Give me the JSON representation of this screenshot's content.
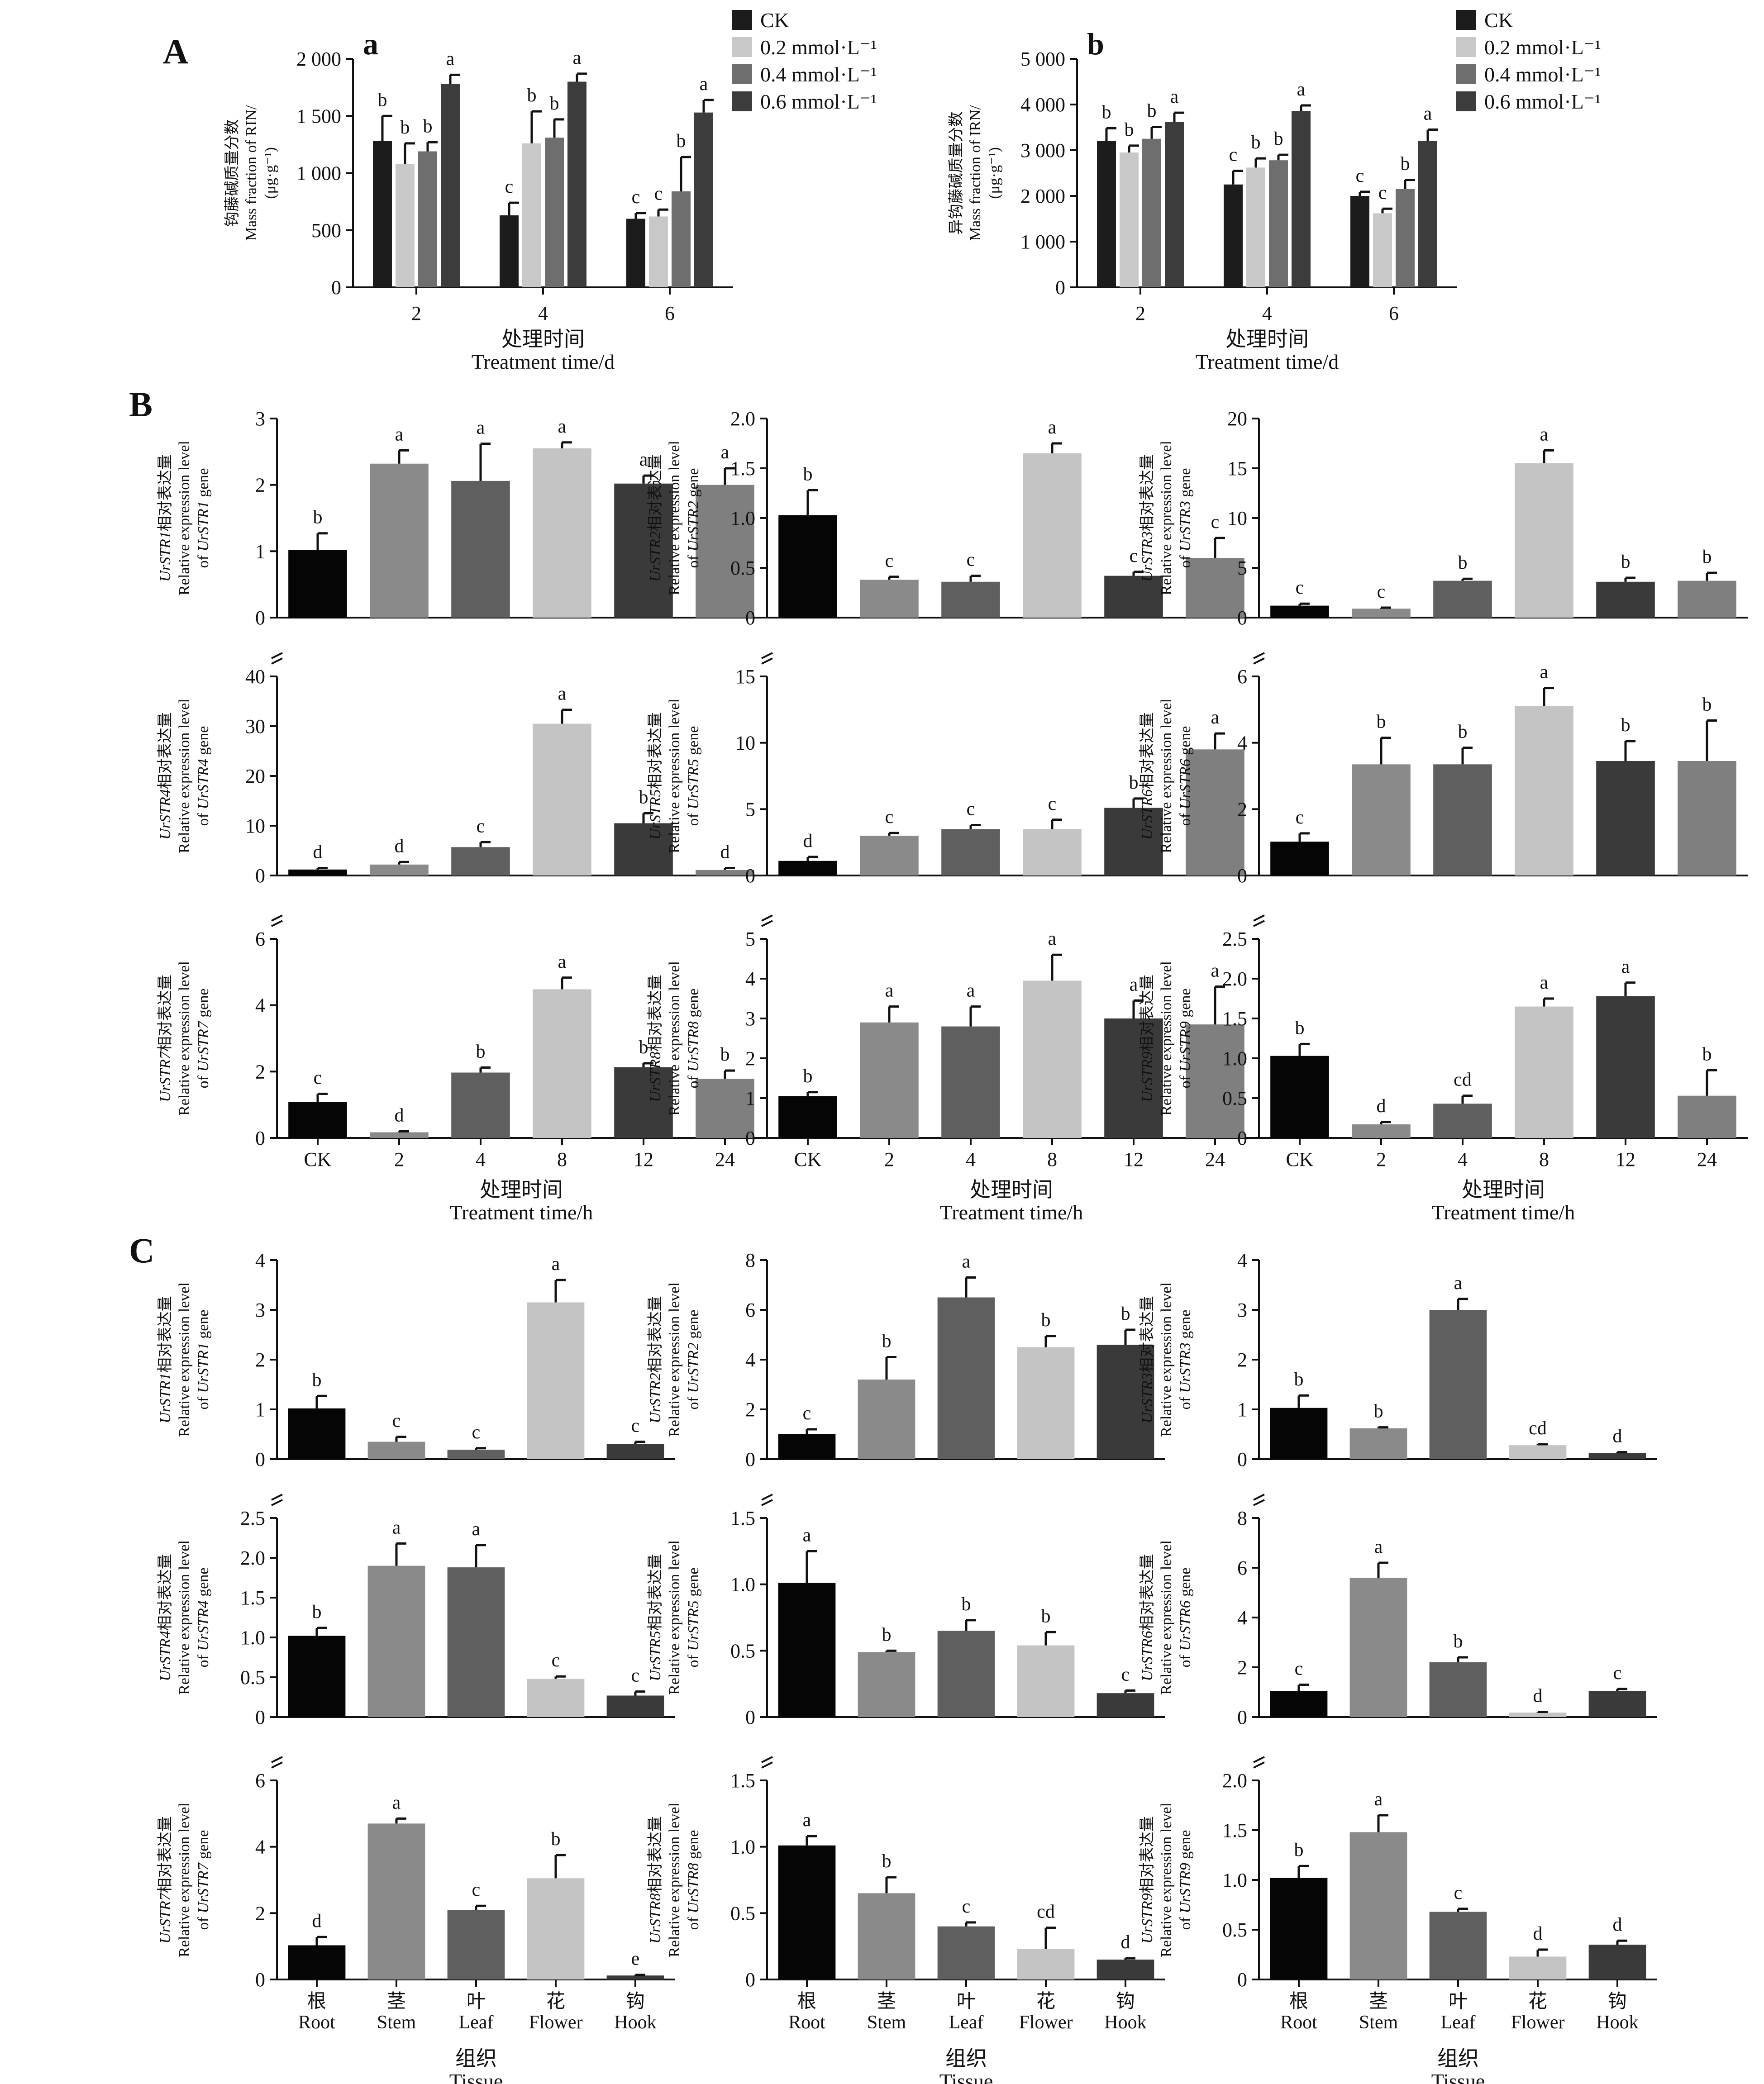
{
  "panels": {
    "A": "A",
    "B": "B",
    "C": "C"
  },
  "legend": [
    {
      "label": "CK",
      "color": "#1c1c1c"
    },
    {
      "label": "0.2 mmol·L⁻¹",
      "color": "#c8c8c8"
    },
    {
      "label": "0.4 mmol·L⁻¹",
      "color": "#6e6e6e"
    },
    {
      "label": "0.6 mmol·L⁻¹",
      "color": "#3c3c3c"
    }
  ],
  "chart_data": [
    {
      "id": "Aa",
      "type": "bar",
      "sublabel": "a",
      "categories": [
        "2",
        "4",
        "6"
      ],
      "series": [
        {
          "name": "CK",
          "values": [
            1280,
            630,
            600
          ],
          "err": [
            220,
            110,
            50
          ],
          "sig": [
            "b",
            "c",
            "c"
          ]
        },
        {
          "name": "0.2 mmol·L⁻¹",
          "values": [
            1080,
            1260,
            620
          ],
          "err": [
            180,
            280,
            60
          ],
          "sig": [
            "b",
            "b",
            "c"
          ]
        },
        {
          "name": "0.4 mmol·L⁻¹",
          "values": [
            1190,
            1310,
            840
          ],
          "err": [
            80,
            160,
            300
          ],
          "sig": [
            "b",
            "b",
            "b"
          ]
        },
        {
          "name": "0.6 mmol·L⁻¹",
          "values": [
            1780,
            1800,
            1530
          ],
          "err": [
            80,
            70,
            110
          ],
          "sig": [
            "a",
            "a",
            "a"
          ]
        }
      ],
      "ylabel_cn": "钩藤碱质量分数",
      "ylabel_en": "Mass fraction of RIN/",
      "ylabel_unit": "(μg·g⁻¹)",
      "xlabel_cn": "处理时间",
      "xlabel_en": "Treatment time/d",
      "yticks": [
        "0",
        "500",
        "1 000",
        "1 500",
        "2 000"
      ],
      "ylim": [
        0,
        2000
      ]
    },
    {
      "id": "Ab",
      "type": "bar",
      "sublabel": "b",
      "categories": [
        "2",
        "4",
        "6"
      ],
      "series": [
        {
          "name": "CK",
          "values": [
            3200,
            2250,
            2000
          ],
          "err": [
            280,
            300,
            90
          ],
          "sig": [
            "b",
            "c",
            "c"
          ]
        },
        {
          "name": "0.2 mmol·L⁻¹",
          "values": [
            2950,
            2620,
            1620
          ],
          "err": [
            150,
            200,
            100
          ],
          "sig": [
            "b",
            "b",
            "c"
          ]
        },
        {
          "name": "0.4 mmol·L⁻¹",
          "values": [
            3250,
            2780,
            2150
          ],
          "err": [
            260,
            120,
            200
          ],
          "sig": [
            "b",
            "b",
            "b"
          ]
        },
        {
          "name": "0.6 mmol·L⁻¹",
          "values": [
            3620,
            3860,
            3200
          ],
          "err": [
            200,
            120,
            250
          ],
          "sig": [
            "a",
            "a",
            "a"
          ]
        }
      ],
      "ylabel_cn": "异钩藤碱质量分数",
      "ylabel_en": "Mass fraction of IRN/",
      "ylabel_unit": "(μg·g⁻¹)",
      "xlabel_cn": "处理时间",
      "xlabel_en": "Treatment time/d",
      "yticks": [
        "0",
        "1 000",
        "2 000",
        "3 000",
        "4 000",
        "5 000"
      ],
      "ylim": [
        0,
        5000
      ]
    },
    {
      "id": "B1",
      "type": "bar",
      "gene": "UrSTR1",
      "categories": [
        "CK",
        "2",
        "4",
        "8",
        "12",
        "24"
      ],
      "values": [
        1.02,
        2.32,
        2.06,
        2.55,
        2.02,
        2.0
      ],
      "err": [
        0.25,
        0.2,
        0.56,
        0.09,
        0.12,
        0.25
      ],
      "sig": [
        "b",
        "a",
        "a",
        "a",
        "a",
        "a"
      ],
      "yticks": [
        "0",
        "1",
        "2",
        "3"
      ],
      "ylim": [
        0,
        3
      ]
    },
    {
      "id": "B2",
      "type": "bar",
      "gene": "UrSTR2",
      "categories": [
        "CK",
        "2",
        "4",
        "8",
        "12",
        "24"
      ],
      "values": [
        1.03,
        0.38,
        0.36,
        1.65,
        0.42,
        0.6
      ],
      "err": [
        0.25,
        0.03,
        0.06,
        0.1,
        0.04,
        0.2
      ],
      "sig": [
        "b",
        "c",
        "c",
        "a",
        "c",
        "c"
      ],
      "yticks": [
        "0",
        "0.5",
        "1.0",
        "1.5",
        "2.0"
      ],
      "ylim": [
        0,
        2
      ]
    },
    {
      "id": "B3",
      "type": "bar",
      "gene": "UrSTR3",
      "categories": [
        "CK",
        "2",
        "4",
        "8",
        "12",
        "24"
      ],
      "values": [
        1.2,
        0.9,
        3.7,
        15.5,
        3.6,
        3.7
      ],
      "err": [
        0.2,
        0.1,
        0.2,
        1.3,
        0.4,
        0.8
      ],
      "sig": [
        "c",
        "c",
        "b",
        "a",
        "b",
        "b"
      ],
      "yticks": [
        "0",
        "5",
        "10",
        "15",
        "20"
      ],
      "ylim": [
        0,
        20
      ]
    },
    {
      "id": "B4",
      "type": "bar",
      "gene": "UrSTR4",
      "categories": [
        "CK",
        "2",
        "4",
        "8",
        "12",
        "24"
      ],
      "values": [
        1.2,
        2.2,
        5.7,
        30.5,
        10.5,
        1.1
      ],
      "err": [
        0.3,
        0.5,
        1.0,
        2.8,
        2.0,
        0.4
      ],
      "sig": [
        "d",
        "d",
        "c",
        "a",
        "b",
        "d"
      ],
      "yticks": [
        "0",
        "10",
        "20",
        "30",
        "40"
      ],
      "ylim": [
        0,
        40
      ]
    },
    {
      "id": "B5",
      "type": "bar",
      "gene": "UrSTR5",
      "categories": [
        "CK",
        "2",
        "4",
        "8",
        "12",
        "24"
      ],
      "values": [
        1.1,
        3.0,
        3.5,
        3.5,
        5.1,
        9.5
      ],
      "err": [
        0.3,
        0.2,
        0.3,
        0.7,
        0.7,
        1.2
      ],
      "sig": [
        "d",
        "c",
        "c",
        "c",
        "b",
        "a"
      ],
      "yticks": [
        "0",
        "5",
        "10",
        "15"
      ],
      "ylim": [
        0,
        15
      ]
    },
    {
      "id": "B6",
      "type": "bar",
      "gene": "UrSTR6",
      "categories": [
        "CK",
        "2",
        "4",
        "8",
        "12",
        "24"
      ],
      "values": [
        1.02,
        3.35,
        3.35,
        5.1,
        3.45,
        3.45
      ],
      "err": [
        0.25,
        0.8,
        0.5,
        0.55,
        0.6,
        1.22
      ],
      "sig": [
        "c",
        "b",
        "b",
        "a",
        "b",
        "b"
      ],
      "yticks": [
        "0",
        "2",
        "4",
        "6"
      ],
      "ylim": [
        0,
        6
      ]
    },
    {
      "id": "B7",
      "type": "bar",
      "gene": "UrSTR7",
      "categories": [
        "CK",
        "2",
        "4",
        "8",
        "12",
        "24"
      ],
      "values": [
        1.08,
        0.17,
        1.97,
        4.48,
        2.13,
        1.78
      ],
      "err": [
        0.25,
        0.03,
        0.15,
        0.35,
        0.12,
        0.25
      ],
      "sig": [
        "c",
        "d",
        "b",
        "a",
        "b",
        "b"
      ],
      "yticks": [
        "0",
        "2",
        "4",
        "6"
      ],
      "ylim": [
        0,
        6
      ]
    },
    {
      "id": "B8",
      "type": "bar",
      "gene": "UrSTR8",
      "categories": [
        "CK",
        "2",
        "4",
        "8",
        "12",
        "24"
      ],
      "values": [
        1.05,
        2.9,
        2.8,
        3.95,
        3.0,
        2.85
      ],
      "err": [
        0.1,
        0.4,
        0.5,
        0.65,
        0.45,
        0.95
      ],
      "sig": [
        "b",
        "a",
        "a",
        "a",
        "a",
        "a"
      ],
      "yticks": [
        "0",
        "1",
        "2",
        "3",
        "4",
        "5"
      ],
      "ylim": [
        0,
        5
      ]
    },
    {
      "id": "B9",
      "type": "bar",
      "gene": "UrSTR9",
      "categories": [
        "CK",
        "2",
        "4",
        "8",
        "12",
        "24"
      ],
      "values": [
        1.03,
        0.17,
        0.43,
        1.65,
        1.78,
        0.53
      ],
      "err": [
        0.15,
        0.03,
        0.1,
        0.1,
        0.17,
        0.32
      ],
      "sig": [
        "b",
        "d",
        "cd",
        "a",
        "a",
        "b"
      ],
      "yticks": [
        "0",
        "0.5",
        "1.0",
        "1.5",
        "2.0",
        "2.5"
      ],
      "ylim": [
        0,
        2.5
      ]
    },
    {
      "id": "C1",
      "type": "bar",
      "gene": "UrSTR1",
      "categories": [
        "Root",
        "Stem",
        "Leaf",
        "Flower",
        "Hook"
      ],
      "values": [
        1.02,
        0.35,
        0.19,
        3.15,
        0.3
      ],
      "err": [
        0.25,
        0.1,
        0.03,
        0.45,
        0.05
      ],
      "sig": [
        "b",
        "c",
        "c",
        "a",
        "c"
      ],
      "yticks": [
        "0",
        "1",
        "2",
        "3",
        "4"
      ],
      "ylim": [
        0,
        4
      ]
    },
    {
      "id": "C2",
      "type": "bar",
      "gene": "UrSTR2",
      "categories": [
        "Root",
        "Stem",
        "Leaf",
        "Flower",
        "Hook"
      ],
      "values": [
        1.0,
        3.2,
        6.5,
        4.5,
        4.6
      ],
      "err": [
        0.2,
        0.9,
        0.8,
        0.45,
        0.6
      ],
      "sig": [
        "c",
        "b",
        "a",
        "b",
        "b"
      ],
      "yticks": [
        "0",
        "2",
        "4",
        "6",
        "8"
      ],
      "ylim": [
        0,
        8
      ]
    },
    {
      "id": "C3",
      "type": "bar",
      "gene": "UrSTR3",
      "categories": [
        "Root",
        "Stem",
        "Leaf",
        "Flower",
        "Hook"
      ],
      "values": [
        1.03,
        0.62,
        3.0,
        0.28,
        0.12
      ],
      "err": [
        0.25,
        0.02,
        0.22,
        0.02,
        0.02
      ],
      "sig": [
        "b",
        "b",
        "a",
        "cd",
        "d"
      ],
      "yticks": [
        "0",
        "1",
        "2",
        "3",
        "4"
      ],
      "ylim": [
        0,
        4
      ]
    },
    {
      "id": "C4",
      "type": "bar",
      "gene": "UrSTR4",
      "categories": [
        "Root",
        "Stem",
        "Leaf",
        "Flower",
        "Hook"
      ],
      "values": [
        1.02,
        1.9,
        1.88,
        0.48,
        0.27
      ],
      "err": [
        0.1,
        0.28,
        0.28,
        0.03,
        0.05
      ],
      "sig": [
        "b",
        "a",
        "a",
        "c",
        "c"
      ],
      "yticks": [
        "0",
        "0.5",
        "1.0",
        "1.5",
        "2.0",
        "2.5"
      ],
      "ylim": [
        0,
        2.5
      ]
    },
    {
      "id": "C5",
      "type": "bar",
      "gene": "UrSTR5",
      "categories": [
        "Root",
        "Stem",
        "Leaf",
        "Flower",
        "Hook"
      ],
      "values": [
        1.01,
        0.49,
        0.65,
        0.54,
        0.18
      ],
      "err": [
        0.24,
        0.01,
        0.08,
        0.1,
        0.02
      ],
      "sig": [
        "a",
        "b",
        "b",
        "b",
        "c"
      ],
      "yticks": [
        "0",
        "0.5",
        "1.0",
        "1.5"
      ],
      "ylim": [
        0,
        1.5
      ]
    },
    {
      "id": "C6",
      "type": "bar",
      "gene": "UrSTR6",
      "categories": [
        "Root",
        "Stem",
        "Leaf",
        "Flower",
        "Hook"
      ],
      "values": [
        1.05,
        5.6,
        2.2,
        0.18,
        1.05
      ],
      "err": [
        0.25,
        0.6,
        0.2,
        0.03,
        0.08
      ],
      "sig": [
        "c",
        "a",
        "b",
        "d",
        "c"
      ],
      "yticks": [
        "0",
        "2",
        "4",
        "6",
        "8"
      ],
      "ylim": [
        0,
        8
      ]
    },
    {
      "id": "C7",
      "type": "bar",
      "gene": "UrSTR7",
      "categories": [
        "Root",
        "Stem",
        "Leaf",
        "Flower",
        "Hook"
      ],
      "values": [
        1.03,
        4.7,
        2.1,
        3.05,
        0.12
      ],
      "err": [
        0.25,
        0.15,
        0.12,
        0.7,
        0.02
      ],
      "sig": [
        "d",
        "a",
        "c",
        "b",
        "e"
      ],
      "yticks": [
        "0",
        "2",
        "4",
        "6"
      ],
      "ylim": [
        0,
        6
      ]
    },
    {
      "id": "C8",
      "type": "bar",
      "gene": "UrSTR8",
      "categories": [
        "Root",
        "Stem",
        "Leaf",
        "Flower",
        "Hook"
      ],
      "values": [
        1.01,
        0.65,
        0.4,
        0.23,
        0.15
      ],
      "err": [
        0.07,
        0.12,
        0.03,
        0.16,
        0.01
      ],
      "sig": [
        "a",
        "b",
        "c",
        "cd",
        "d"
      ],
      "yticks": [
        "0",
        "0.5",
        "1.0",
        "1.5"
      ],
      "ylim": [
        0,
        1.5
      ]
    },
    {
      "id": "C9",
      "type": "bar",
      "gene": "UrSTR9",
      "categories": [
        "Root",
        "Stem",
        "Leaf",
        "Flower",
        "Hook"
      ],
      "values": [
        1.02,
        1.48,
        0.68,
        0.23,
        0.35
      ],
      "err": [
        0.12,
        0.17,
        0.03,
        0.07,
        0.04
      ],
      "sig": [
        "b",
        "a",
        "c",
        "d",
        "d"
      ],
      "yticks": [
        "0",
        "0.5",
        "1.0",
        "1.5",
        "2.0"
      ],
      "ylim": [
        0,
        2
      ]
    }
  ],
  "time_axis": {
    "cn": "处理时间",
    "en": "Treatment time/h"
  },
  "tissue_axis": {
    "cn": "组织",
    "en": "Tissue"
  },
  "tissue_cn": [
    "根",
    "茎",
    "叶",
    "花",
    "钩"
  ],
  "gene_ylabel": {
    "cn_suffix": "相对表达量",
    "en_line1": "Relative expression level",
    "en_prefix": "of ",
    "en_suffix": " gene"
  },
  "bar_colors": {
    "B": [
      "#050505",
      "#8a8a8a",
      "#5f5f5f",
      "#c4c4c4",
      "#3a3a3a",
      "#7f7f7f"
    ],
    "C": [
      "#050505",
      "#8a8a8a",
      "#5f5f5f",
      "#c4c4c4",
      "#3a3a3a"
    ]
  }
}
